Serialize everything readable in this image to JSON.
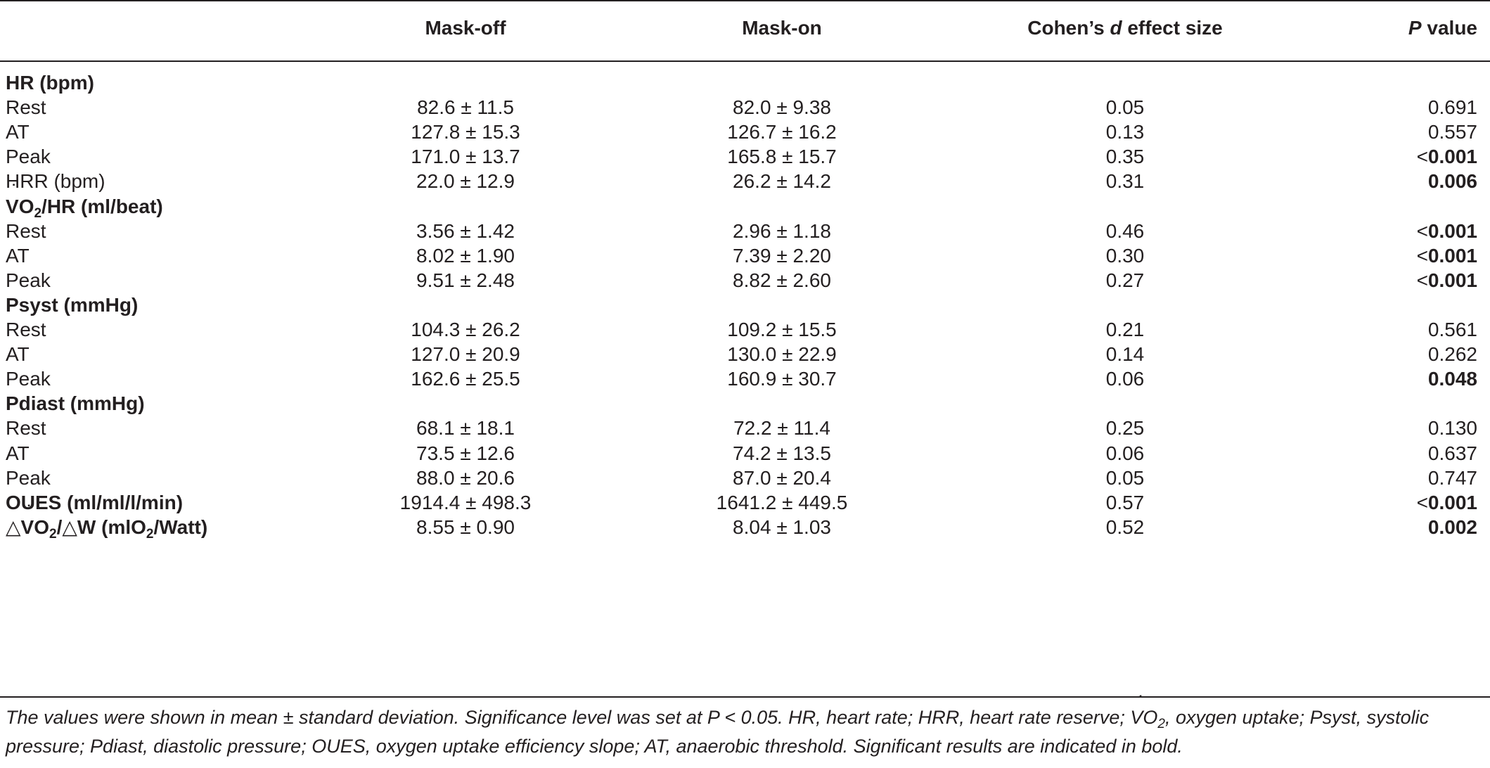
{
  "header": {
    "col1": "Mask-off",
    "col2": "Mask-on",
    "col3_pre": "Cohen’s ",
    "col3_d": "d",
    "col3_post": " effect size",
    "col4_p": "P",
    "col4_post": " value"
  },
  "rows": [
    {
      "label": "HR (bpm)"
    },
    {
      "label": "Rest",
      "off": "82.6 ± 11.5",
      "on": "82.0 ± 9.38",
      "d": "0.05",
      "p": "0.691"
    },
    {
      "label": "AT",
      "off": "127.8 ± 15.3",
      "on": "126.7 ± 16.2",
      "d": "0.13",
      "p": "0.557"
    },
    {
      "label": "Peak",
      "off": "171.0 ± 13.7",
      "on": "165.8 ± 15.7",
      "d": "0.35",
      "p_lt": "<",
      "p": "0.001"
    },
    {
      "label": "HRR (bpm)",
      "off": "22.0 ± 12.9",
      "on": "26.2 ± 14.2",
      "d": "0.31",
      "p": "0.006"
    },
    {
      "label_v": "V",
      "label_sub": "2",
      "label_pre": "O",
      "label_post": "/HR (ml/beat)"
    },
    {
      "label": "Rest",
      "off": "3.56 ± 1.42",
      "on": "2.96 ± 1.18",
      "d": "0.46",
      "p_lt": "<",
      "p": "0.001"
    },
    {
      "label": "AT",
      "off": "8.02 ± 1.90",
      "on": "7.39 ± 2.20",
      "d": "0.30",
      "p_lt": "<",
      "p": "0.001"
    },
    {
      "label": "Peak",
      "off": "9.51 ± 2.48",
      "on": "8.82 ± 2.60",
      "d": "0.27",
      "p_lt": "<",
      "p": "0.001"
    },
    {
      "label": "Psyst (mmHg)"
    },
    {
      "label": "Rest",
      "off": "104.3 ± 26.2",
      "on": "109.2 ± 15.5",
      "d": "0.21",
      "p": "0.561"
    },
    {
      "label": "AT",
      "off": "127.0 ± 20.9",
      "on": "130.0 ± 22.9",
      "d": "0.14",
      "p": "0.262"
    },
    {
      "label": "Peak",
      "off": "162.6 ± 25.5",
      "on": "160.9 ± 30.7",
      "d": "0.06",
      "p": "0.048"
    },
    {
      "label": "Pdiast (mmHg)"
    },
    {
      "label": "Rest",
      "off": "68.1 ± 18.1",
      "on": "72.2 ± 11.4",
      "d": "0.25",
      "p": "0.130"
    },
    {
      "label": "AT",
      "off": "73.5 ± 12.6",
      "on": "74.2 ± 13.5",
      "d": "0.06",
      "p": "0.637"
    },
    {
      "label": "Peak",
      "off": "88.0 ± 20.6",
      "on": "87.0 ± 20.4",
      "d": "0.05",
      "p": "0.747"
    },
    {
      "label": "OUES (ml/ml/l/min)",
      "off": "1914.4 ± 498.3",
      "on": "1641.2 ± 449.5",
      "d": "0.57",
      "p_lt": "<",
      "p": "0.001"
    },
    {
      "label_delta": "△",
      "label_v": "V",
      "label_pre": "O",
      "label_sub": "2",
      "label_post": "/△W (mlO",
      "label_sub2": "2",
      "label_post2": "/Watt)",
      "off": "8.55 ± 0.90",
      "on": "8.04 ± 1.03",
      "d": "0.52",
      "p": "0.002"
    }
  ],
  "footnote": {
    "part1": "The values were shown in mean ± standard deviation. Significance level was set at P < 0.05. HR, heart rate; HRR, heart rate reserve; ",
    "v": "V",
    "o": "O",
    "sub": "2",
    "part2": ", oxygen uptake; Psyst, systolic pressure; Pdiast, diastolic pressure; OUES, oxygen uptake efficiency slope; AT, anaerobic threshold. Significant results are indicated in bold."
  }
}
